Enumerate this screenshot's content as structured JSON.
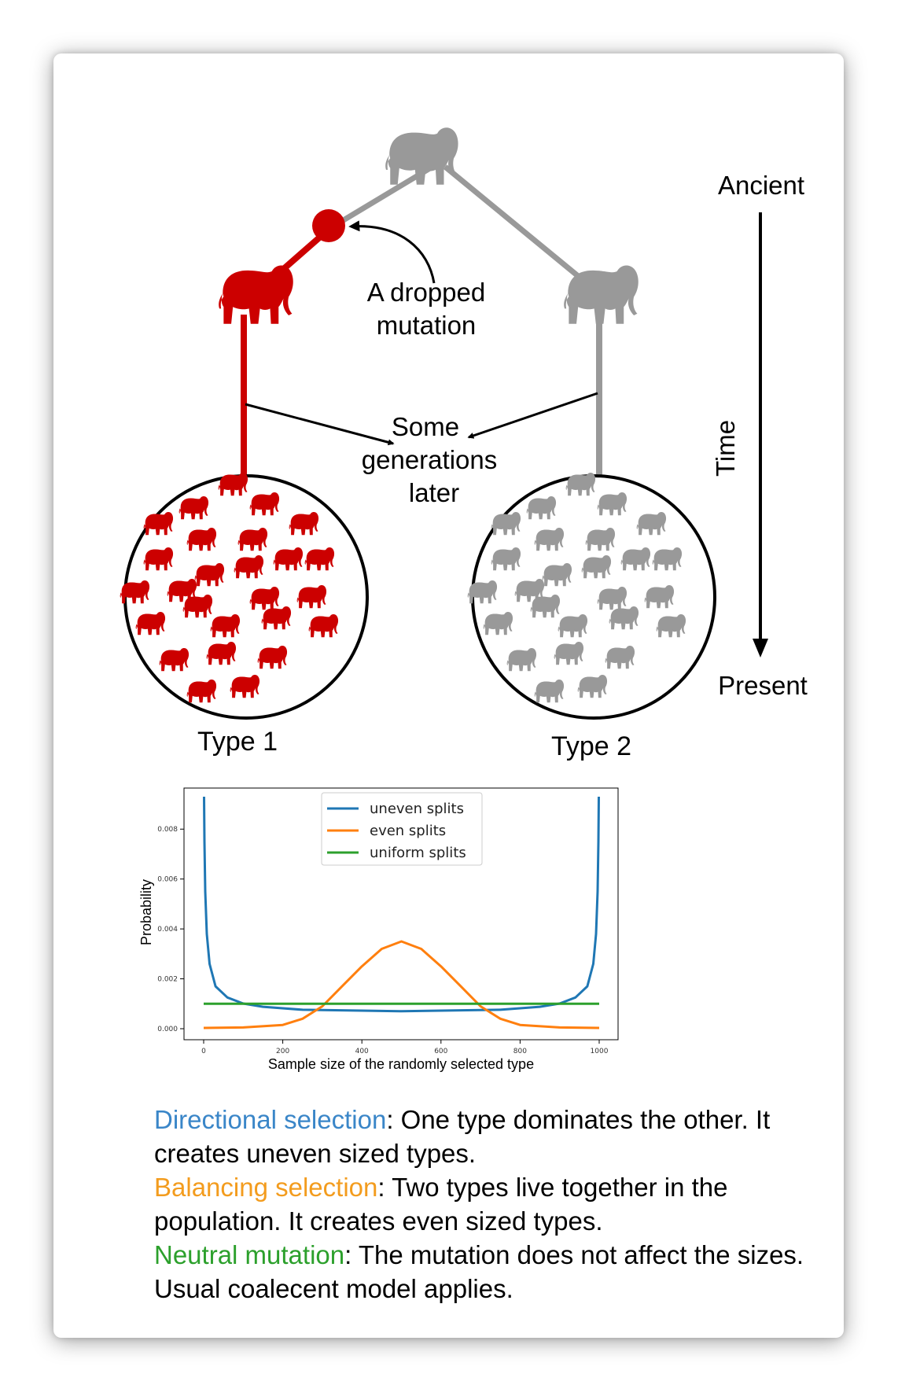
{
  "diagram": {
    "time_axis": {
      "top_label": "Ancient",
      "bottom_label": "Present",
      "axis_label": "Time"
    },
    "labels": {
      "dropped_mutation_line1": "A dropped",
      "dropped_mutation_line2": "mutation",
      "generations_line1": "Some",
      "generations_line2": "generations",
      "generations_line3": "later"
    },
    "types": [
      {
        "label": "Type 1",
        "color": "#cc0000"
      },
      {
        "label": "Type 2",
        "color": "#999999"
      }
    ],
    "ancestor_color": "#999999"
  },
  "chart_data": {
    "type": "line",
    "xlabel": "Sample size of the randomly selected type",
    "ylabel": "Probability",
    "xlim": [
      0,
      1000
    ],
    "ylim": [
      0,
      0.0093
    ],
    "xticks": [
      "0",
      "200",
      "400",
      "600",
      "800",
      "1000"
    ],
    "yticks": [
      "0.000",
      "0.002",
      "0.004",
      "0.006",
      "0.008"
    ],
    "legend_position": "top-center",
    "series": [
      {
        "name": "uneven splits",
        "color": "#1f77b4",
        "x": [
          1,
          2,
          4,
          8,
          15,
          30,
          60,
          100,
          150,
          250,
          500,
          750,
          850,
          900,
          940,
          970,
          985,
          992,
          996,
          998,
          999
        ],
        "y": [
          0.0093,
          0.0075,
          0.0055,
          0.0038,
          0.0026,
          0.0017,
          0.00125,
          0.00101,
          0.00088,
          0.00076,
          0.0007,
          0.00076,
          0.00088,
          0.00101,
          0.00125,
          0.0017,
          0.0026,
          0.0038,
          0.0055,
          0.0075,
          0.0093
        ]
      },
      {
        "name": "even splits",
        "color": "#ff7f0e",
        "x": [
          0,
          100,
          200,
          250,
          300,
          350,
          400,
          450,
          500,
          550,
          600,
          650,
          700,
          750,
          800,
          900,
          1000
        ],
        "y": [
          3e-05,
          5e-05,
          0.00015,
          0.0004,
          0.0009,
          0.0017,
          0.0025,
          0.0032,
          0.0035,
          0.0032,
          0.0025,
          0.0017,
          0.0009,
          0.0004,
          0.00015,
          5e-05,
          3e-05
        ]
      },
      {
        "name": "uniform splits",
        "color": "#2ca02c",
        "x": [
          0,
          1000
        ],
        "y": [
          0.001,
          0.001
        ]
      }
    ]
  },
  "caption": {
    "directional": {
      "term": "Directional selection",
      "text": ": One type dominates the other. It creates uneven sized types.",
      "color": "#3a86c8"
    },
    "balancing": {
      "term": "Balancing selection",
      "text": ": Two types live together in the population. It creates even sized types.",
      "color": "#f39c1e"
    },
    "neutral": {
      "term": "Neutral mutation",
      "text": ": The mutation does not affect the sizes. Usual coalecent model applies.",
      "color": "#2ca02c"
    }
  }
}
